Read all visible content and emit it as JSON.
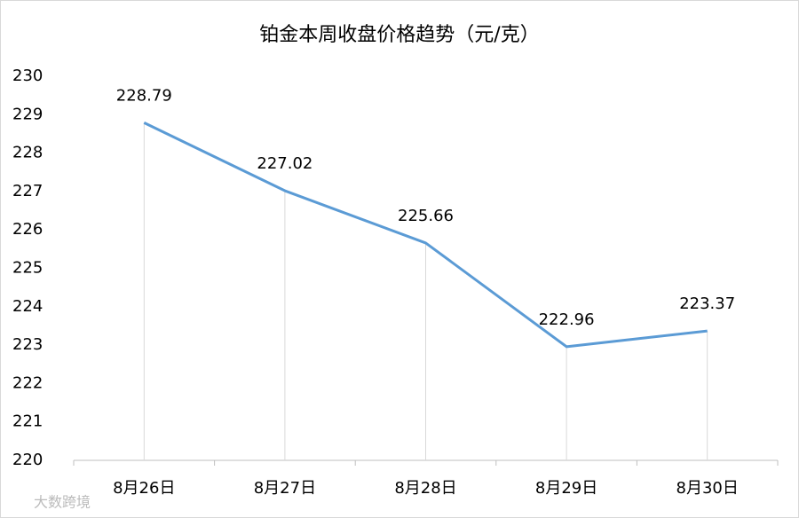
{
  "chart_data": {
    "type": "line",
    "title": "铂金本周收盘价格趋势（元/克）",
    "categories": [
      "8月26日",
      "8月27日",
      "8月28日",
      "8月29日",
      "8月30日"
    ],
    "values": [
      228.79,
      227.02,
      225.66,
      222.96,
      223.37
    ],
    "color": "#5b9bd5",
    "ylim": [
      220,
      230
    ],
    "yticks": [
      220,
      221,
      222,
      223,
      224,
      225,
      226,
      227,
      228,
      229,
      230
    ],
    "drop_lines": true,
    "grid": false
  },
  "watermark": "大数跨境"
}
